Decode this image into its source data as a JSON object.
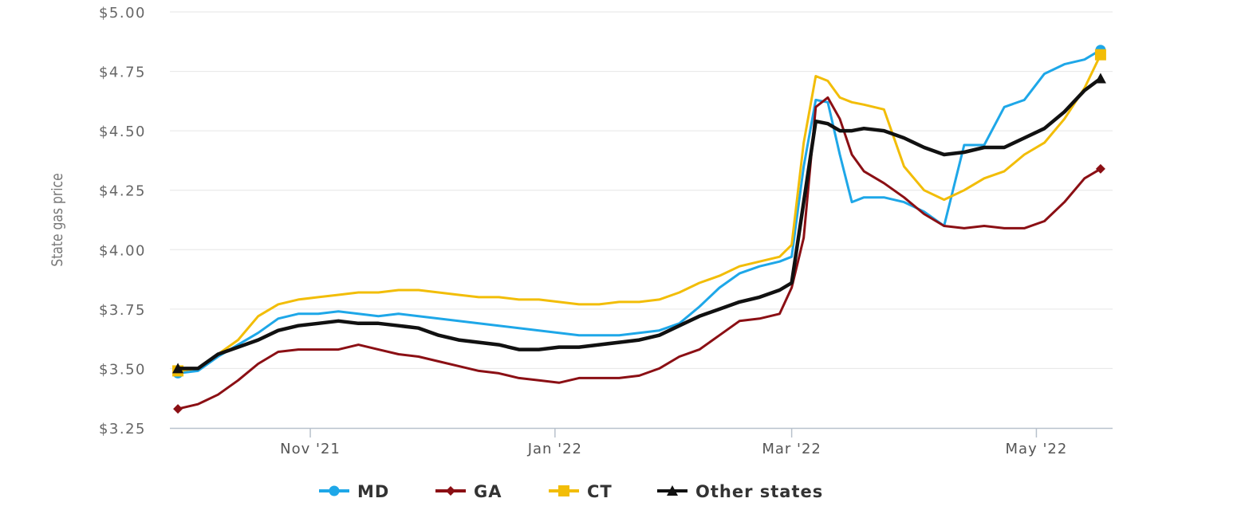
{
  "chart_data": {
    "type": "line",
    "title": "",
    "xlabel": "",
    "ylabel": "State gas price",
    "x_tick_labels": [
      "Nov '21",
      "Jan '22",
      "Mar '22",
      "May '22"
    ],
    "y_tick_labels": [
      "$3.25",
      "$3.50",
      "$3.75",
      "$4.00",
      "$4.25",
      "$4.50",
      "$4.75",
      "$5.00"
    ],
    "ylim": [
      3.25,
      5.0
    ],
    "grid": "horizontal",
    "legend_position": "bottom-center",
    "x": [
      "2021-09-29",
      "2021-10-04",
      "2021-10-09",
      "2021-10-14",
      "2021-10-19",
      "2021-10-24",
      "2021-10-29",
      "2021-11-03",
      "2021-11-08",
      "2021-11-13",
      "2021-11-18",
      "2021-11-23",
      "2021-11-28",
      "2021-12-03",
      "2021-12-08",
      "2021-12-13",
      "2021-12-18",
      "2021-12-23",
      "2021-12-28",
      "2022-01-02",
      "2022-01-07",
      "2022-01-12",
      "2022-01-17",
      "2022-01-22",
      "2022-01-27",
      "2022-02-01",
      "2022-02-06",
      "2022-02-11",
      "2022-02-16",
      "2022-02-21",
      "2022-02-26",
      "2022-03-01",
      "2022-03-04",
      "2022-03-07",
      "2022-03-10",
      "2022-03-13",
      "2022-03-16",
      "2022-03-19",
      "2022-03-24",
      "2022-03-29",
      "2022-04-03",
      "2022-04-08",
      "2022-04-13",
      "2022-04-18",
      "2022-04-23",
      "2022-04-28",
      "2022-05-03",
      "2022-05-08",
      "2022-05-13",
      "2022-05-17"
    ],
    "series": [
      {
        "name": "MD",
        "color": "#1ea7e8",
        "marker": "circle",
        "values": [
          3.48,
          3.49,
          3.55,
          3.6,
          3.65,
          3.71,
          3.73,
          3.73,
          3.74,
          3.73,
          3.72,
          3.73,
          3.72,
          3.71,
          3.7,
          3.69,
          3.68,
          3.67,
          3.66,
          3.65,
          3.64,
          3.64,
          3.64,
          3.65,
          3.66,
          3.69,
          3.76,
          3.84,
          3.9,
          3.93,
          3.95,
          3.97,
          4.35,
          4.63,
          4.62,
          4.4,
          4.2,
          4.22,
          4.22,
          4.2,
          4.16,
          4.1,
          4.44,
          4.44,
          4.6,
          4.63,
          4.74,
          4.78,
          4.8,
          4.84
        ]
      },
      {
        "name": "GA",
        "color": "#8b0f14",
        "marker": "diamond",
        "values": [
          3.33,
          3.35,
          3.39,
          3.45,
          3.52,
          3.57,
          3.58,
          3.58,
          3.58,
          3.6,
          3.58,
          3.56,
          3.55,
          3.53,
          3.51,
          3.49,
          3.48,
          3.46,
          3.45,
          3.44,
          3.46,
          3.46,
          3.46,
          3.47,
          3.5,
          3.55,
          3.58,
          3.64,
          3.7,
          3.71,
          3.73,
          3.84,
          4.05,
          4.6,
          4.64,
          4.55,
          4.4,
          4.33,
          4.28,
          4.22,
          4.15,
          4.1,
          4.09,
          4.1,
          4.09,
          4.09,
          4.12,
          4.2,
          4.3,
          4.34
        ]
      },
      {
        "name": "CT",
        "color": "#f2bd07",
        "marker": "square",
        "values": [
          3.49,
          3.5,
          3.56,
          3.62,
          3.72,
          3.77,
          3.79,
          3.8,
          3.81,
          3.82,
          3.82,
          3.83,
          3.83,
          3.82,
          3.81,
          3.8,
          3.8,
          3.79,
          3.79,
          3.78,
          3.77,
          3.77,
          3.78,
          3.78,
          3.79,
          3.82,
          3.86,
          3.89,
          3.93,
          3.95,
          3.97,
          4.02,
          4.45,
          4.73,
          4.71,
          4.64,
          4.62,
          4.61,
          4.59,
          4.35,
          4.25,
          4.21,
          4.25,
          4.3,
          4.33,
          4.4,
          4.45,
          4.55,
          4.68,
          4.82
        ]
      },
      {
        "name": "Other states",
        "color": "#111111",
        "marker": "triangle",
        "values": [
          3.5,
          3.5,
          3.56,
          3.59,
          3.62,
          3.66,
          3.68,
          3.69,
          3.7,
          3.69,
          3.69,
          3.68,
          3.67,
          3.64,
          3.62,
          3.61,
          3.6,
          3.58,
          3.58,
          3.59,
          3.59,
          3.6,
          3.61,
          3.62,
          3.64,
          3.68,
          3.72,
          3.75,
          3.78,
          3.8,
          3.83,
          3.86,
          4.2,
          4.54,
          4.53,
          4.5,
          4.5,
          4.51,
          4.5,
          4.47,
          4.43,
          4.4,
          4.41,
          4.43,
          4.43,
          4.47,
          4.51,
          4.58,
          4.67,
          4.72
        ]
      }
    ]
  }
}
